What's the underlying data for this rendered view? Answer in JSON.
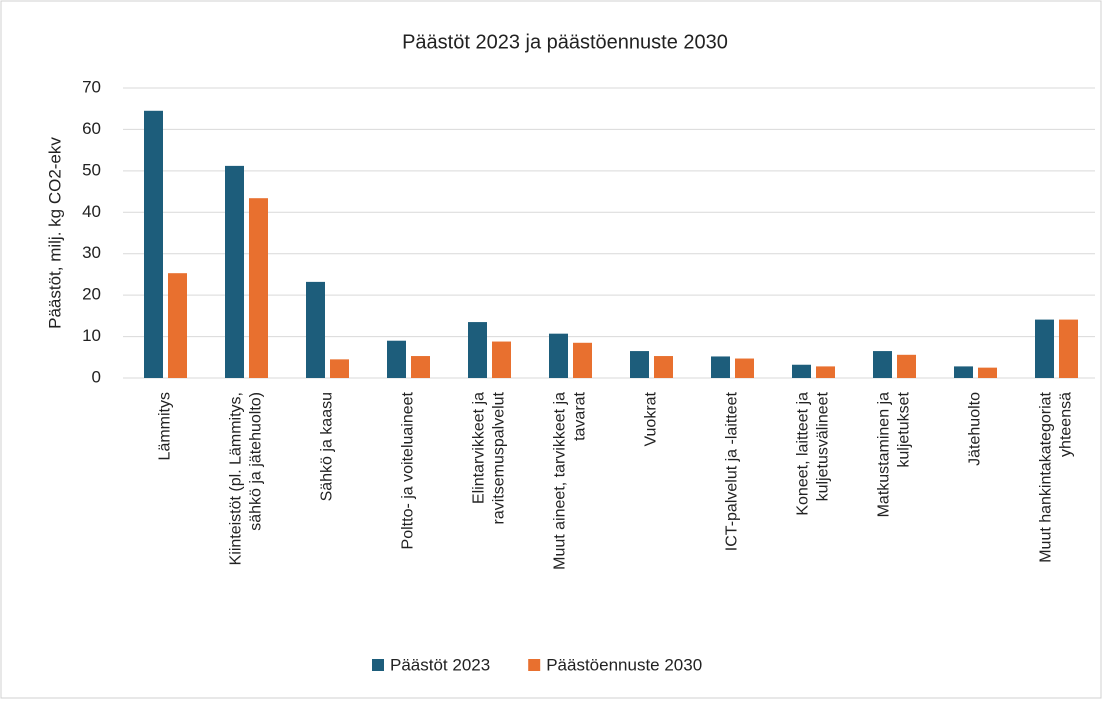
{
  "chart_data": {
    "type": "bar",
    "title": "Päästöt 2023 ja päästöennuste 2030",
    "ylabel": "Päästöt, milj. kg CO2-ekv",
    "categories": [
      "Lämmitys",
      "Kiinteistöt (pl. Lämmitys,\nsähkö ja jätehuolto)",
      "Sähkö ja kaasu",
      "Poltto- ja voiteluaineet",
      "Elintarvikkeet ja\nravitsemuspalvelut",
      "Muut aineet, tarvikkeet ja\ntavarat",
      "Vuokrat",
      "ICT-palvelut ja -laitteet",
      "Koneet, laitteet ja\nkuljetusvälineet",
      "Matkustaminen ja\nkuljetukset",
      "Jätehuolto",
      "Muut hankintakategoriat\nyhteensä"
    ],
    "series": [
      {
        "name": "Päästöt 2023",
        "color": "#1d5d7b",
        "values": [
          64.5,
          51.2,
          23.2,
          9.0,
          13.5,
          10.7,
          6.5,
          5.2,
          3.2,
          6.5,
          2.8,
          14.1
        ]
      },
      {
        "name": "Päästöennuste 2030",
        "color": "#e8702f",
        "values": [
          25.3,
          43.4,
          4.5,
          5.3,
          8.8,
          8.5,
          5.3,
          4.7,
          2.8,
          5.6,
          2.5,
          14.1
        ]
      }
    ],
    "ylim": [
      0,
      70
    ],
    "yticks": [
      0,
      10,
      20,
      30,
      40,
      50,
      60,
      70
    ],
    "grid": true,
    "legend": "bottom"
  }
}
